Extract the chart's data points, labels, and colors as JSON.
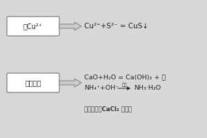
{
  "bg_color": "#d8d8d8",
  "box1_text": "含Cu²⁺",
  "box2_text": "乙氨废液",
  "eq1": "Cu²⁺+S²⁻ = CuS↓",
  "eq2_line1": "CaO+H₂O = Ca(OH)₂ + 热",
  "eq2_line2_part1": "NH₄⁺+OH⁻",
  "eq2_line2_arrow_label": "加热",
  "eq2_line2_part2": "NH₃·H₂O",
  "footer": "结晶氯化钙CaCl₂ 和微量",
  "box_color": "#ffffff",
  "box_edge_color": "#888888",
  "text_color": "#222222",
  "arrow_color": "#888888",
  "footer_color": "#333333"
}
